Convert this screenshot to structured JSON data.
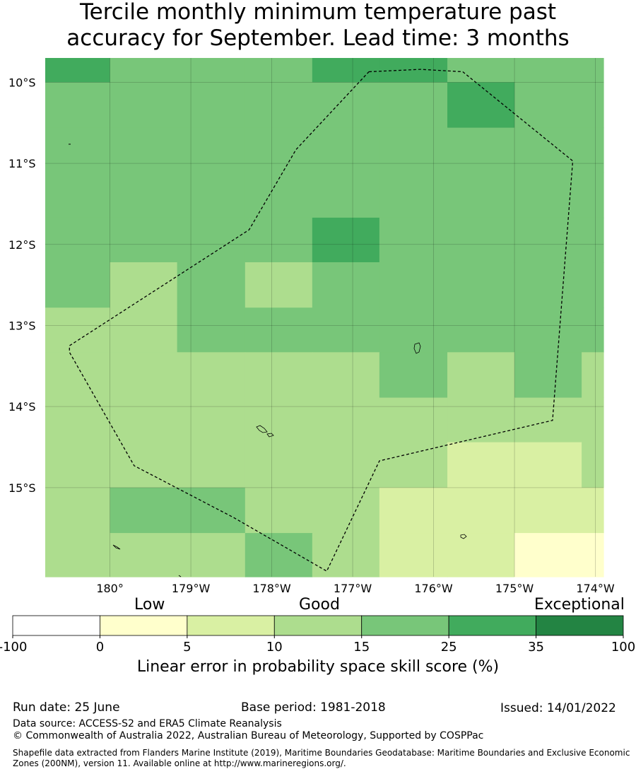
{
  "title": {
    "line1": "Tercile monthly minimum temperature past",
    "line2": "accuracy for September. Lead time: 3 months"
  },
  "map": {
    "lat_labels": [
      "10°S",
      "11°S",
      "12°S",
      "13°S",
      "14°S",
      "15°S"
    ],
    "lat_values": [
      -10,
      -11,
      -12,
      -13,
      -14,
      -15
    ],
    "lon_labels": [
      "180°",
      "179°W",
      "178°W",
      "177°W",
      "176°W",
      "175°W",
      "174°W"
    ],
    "lon_values": [
      180,
      181,
      182,
      183,
      184,
      185,
      186
    ],
    "lon_range": [
      179.2,
      186.1
    ],
    "lat_range": [
      -9.7,
      -16.1
    ],
    "grid": true,
    "grid_cell_lon_edges": [
      179.2,
      180.0,
      180.83,
      181.67,
      182.5,
      183.33,
      184.17,
      185.0,
      185.83,
      186.1
    ],
    "grid_cell_lat_edges": [
      -9.7,
      -10.0,
      -10.56,
      -11.11,
      -11.67,
      -12.22,
      -12.78,
      -13.33,
      -13.89,
      -14.44,
      -15.0,
      -15.56,
      -16.1
    ],
    "skill_class_rows": [
      [
        5,
        4,
        4,
        4,
        5,
        5,
        4,
        4,
        4
      ],
      [
        4,
        4,
        4,
        4,
        4,
        4,
        5,
        4,
        4
      ],
      [
        4,
        4,
        4,
        4,
        4,
        4,
        4,
        4,
        4
      ],
      [
        4,
        4,
        4,
        4,
        4,
        4,
        4,
        4,
        4
      ],
      [
        4,
        4,
        4,
        4,
        5,
        4,
        4,
        4,
        4
      ],
      [
        4,
        3,
        4,
        3,
        4,
        4,
        4,
        4,
        4
      ],
      [
        3,
        3,
        4,
        4,
        4,
        4,
        4,
        4,
        4
      ],
      [
        3,
        3,
        3,
        3,
        3,
        4,
        3,
        4,
        3
      ],
      [
        3,
        3,
        3,
        3,
        3,
        3,
        3,
        3,
        3
      ],
      [
        3,
        3,
        3,
        3,
        3,
        3,
        2,
        2,
        3
      ],
      [
        3,
        4,
        4,
        3,
        3,
        2,
        2,
        2,
        2
      ],
      [
        3,
        3,
        3,
        4,
        3,
        2,
        2,
        1,
        1
      ]
    ],
    "eez_boundary_lonlat": [
      [
        183.2,
        -9.87
      ],
      [
        183.84,
        -9.84
      ],
      [
        184.36,
        -9.87
      ],
      [
        185.72,
        -10.97
      ],
      [
        185.47,
        -14.17
      ],
      [
        183.33,
        -14.67
      ],
      [
        182.68,
        -16.03
      ],
      [
        181.53,
        -15.37
      ],
      [
        180.3,
        -14.73
      ],
      [
        179.5,
        -13.33
      ],
      [
        179.5,
        -13.25
      ],
      [
        181.72,
        -11.82
      ],
      [
        182.3,
        -10.83
      ],
      [
        183.2,
        -9.87
      ]
    ]
  },
  "colorbar": {
    "ticks": [
      "-100",
      "0",
      "5",
      "10",
      "15",
      "25",
      "35",
      "100"
    ],
    "colors": [
      "#ffffff",
      "#ffffcc",
      "#d9f0a3",
      "#addd8e",
      "#78c679",
      "#41ab5d",
      "#238443"
    ],
    "categories": [
      "Low",
      "Good",
      "Exceptional"
    ],
    "label": "Linear error in probability space skill score (%)"
  },
  "footer": {
    "run_date": "Run date: 25 June",
    "base_period": "Base period: 1981-2018",
    "issued": "Issued: 14/01/2022",
    "data_source": "Data source: ACCESS-S2 and ERA5 Climate Reanalysis",
    "copyright": "© Commonwealth of Australia 2022, Australian Bureau of Meteorology, Supported by COSPPac",
    "shapefile_line1": "Shapefile data extracted from Flanders Marine Institute (2019), Maritime Boundaries Geodatabase: Maritime Boundaries and Exclusive Economic",
    "shapefile_line2": "Zones (200NM), version 11. Available online at http://www.marineregions.org/."
  }
}
